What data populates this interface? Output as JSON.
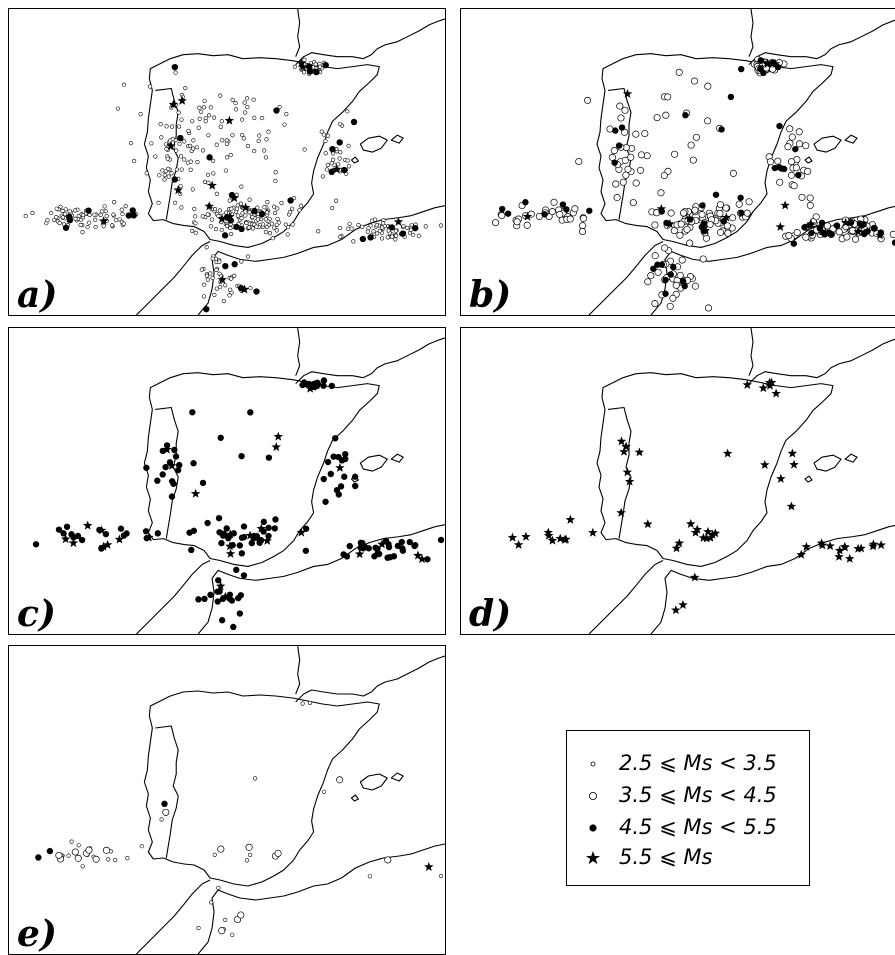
{
  "panels": [
    {
      "id": "a",
      "label": "a)"
    },
    {
      "id": "b",
      "label": "b)"
    },
    {
      "id": "c",
      "label": "c)"
    },
    {
      "id": "d",
      "label": "d)"
    },
    {
      "id": "e",
      "label": "e)"
    }
  ],
  "legend": {
    "items": [
      {
        "symbol": "small-open-circle",
        "label": "2.5 ⩽ Ms < 3.5"
      },
      {
        "symbol": "large-open-circle",
        "label": "3.5 ⩽ Ms < 4.5"
      },
      {
        "symbol": "filled-circle",
        "label": "4.5 ⩽ Ms < 5.5"
      },
      {
        "symbol": "star",
        "label": "5.5 ⩽ Ms"
      }
    ]
  },
  "colors": {
    "ink": "#000000",
    "background": "#ffffff"
  }
}
